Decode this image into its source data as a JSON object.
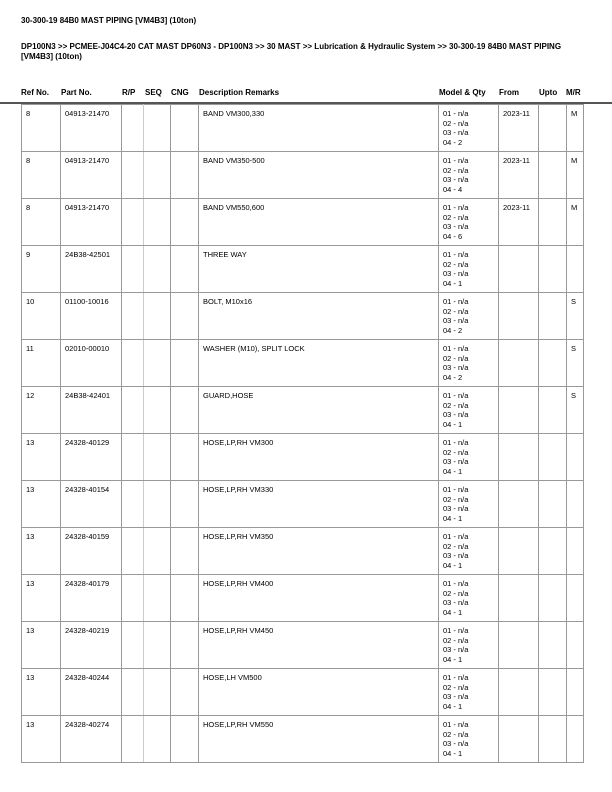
{
  "title": "30-300-19 84B0 MAST PIPING [VM4B3] (10ton)",
  "breadcrumb": "DP100N3 >> PCMEE-J04C4-20 CAT MAST DP60N3 - DP100N3 >> 30 MAST >> Lubrication & Hydraulic System >> 30-300-19 84B0 MAST PIPING [VM4B3] (10ton)",
  "columns": [
    "Ref No.",
    "Part No.",
    "R/P",
    "SEQ",
    "CNG",
    "Description Remarks",
    "Model & Qty",
    "From",
    "Upto",
    "M/R"
  ],
  "rows": [
    {
      "ref": "8",
      "part": "04913-21470",
      "desc": "BAND VM300,330",
      "qty": [
        "01 - n/a",
        "02 - n/a",
        "03 - n/a",
        "04 - 2"
      ],
      "from": "2023-11",
      "upto": "",
      "mr": "M"
    },
    {
      "ref": "8",
      "part": "04913-21470",
      "desc": "BAND VM350-500",
      "qty": [
        "01 - n/a",
        "02 - n/a",
        "03 - n/a",
        "04 - 4"
      ],
      "from": "2023-11",
      "upto": "",
      "mr": "M"
    },
    {
      "ref": "8",
      "part": "04913-21470",
      "desc": "BAND VM550,600",
      "qty": [
        "01 - n/a",
        "02 - n/a",
        "03 - n/a",
        "04 - 6"
      ],
      "from": "2023-11",
      "upto": "",
      "mr": "M"
    },
    {
      "ref": "9",
      "part": "24B38-42501",
      "desc": "THREE WAY",
      "qty": [
        "01 - n/a",
        "02 - n/a",
        "03 - n/a",
        "04 - 1"
      ],
      "from": "",
      "upto": "",
      "mr": ""
    },
    {
      "ref": "10",
      "part": "01100-10016",
      "desc": "BOLT, M10x16",
      "qty": [
        "01 - n/a",
        "02 - n/a",
        "03 - n/a",
        "04 - 2"
      ],
      "from": "",
      "upto": "",
      "mr": "S"
    },
    {
      "ref": "11",
      "part": "02010-00010",
      "desc": "WASHER (M10), SPLIT LOCK",
      "qty": [
        "01 - n/a",
        "02 - n/a",
        "03 - n/a",
        "04 - 2"
      ],
      "from": "",
      "upto": "",
      "mr": "S"
    },
    {
      "ref": "12",
      "part": "24B38-42401",
      "desc": "GUARD,HOSE",
      "qty": [
        "01 - n/a",
        "02 - n/a",
        "03 - n/a",
        "04 - 1"
      ],
      "from": "",
      "upto": "",
      "mr": "S"
    },
    {
      "ref": "13",
      "part": "24328-40129",
      "desc": "HOSE,LP,RH VM300",
      "qty": [
        "01 - n/a",
        "02 - n/a",
        "03 - n/a",
        "04 - 1"
      ],
      "from": "",
      "upto": "",
      "mr": ""
    },
    {
      "ref": "13",
      "part": "24328-40154",
      "desc": "HOSE,LP,RH VM330",
      "qty": [
        "01 - n/a",
        "02 - n/a",
        "03 - n/a",
        "04 - 1"
      ],
      "from": "",
      "upto": "",
      "mr": ""
    },
    {
      "ref": "13",
      "part": "24328-40159",
      "desc": "HOSE,LP,RH VM350",
      "qty": [
        "01 - n/a",
        "02 - n/a",
        "03 - n/a",
        "04 - 1"
      ],
      "from": "",
      "upto": "",
      "mr": ""
    },
    {
      "ref": "13",
      "part": "24328-40179",
      "desc": "HOSE,LP,RH VM400",
      "qty": [
        "01 - n/a",
        "02 - n/a",
        "03 - n/a",
        "04 - 1"
      ],
      "from": "",
      "upto": "",
      "mr": ""
    },
    {
      "ref": "13",
      "part": "24328-40219",
      "desc": "HOSE,LP,RH VM450",
      "qty": [
        "01 - n/a",
        "02 - n/a",
        "03 - n/a",
        "04 - 1"
      ],
      "from": "",
      "upto": "",
      "mr": ""
    },
    {
      "ref": "13",
      "part": "24328-40244",
      "desc": "HOSE,LH VM500",
      "qty": [
        "01 - n/a",
        "02 - n/a",
        "03 - n/a",
        "04 - 1"
      ],
      "from": "",
      "upto": "",
      "mr": ""
    },
    {
      "ref": "13",
      "part": "24328-40274",
      "desc": "HOSE,LP,RH VM550",
      "qty": [
        "01 - n/a",
        "02 - n/a",
        "03 - n/a",
        "04 - 1"
      ],
      "from": "",
      "upto": "",
      "mr": ""
    }
  ]
}
